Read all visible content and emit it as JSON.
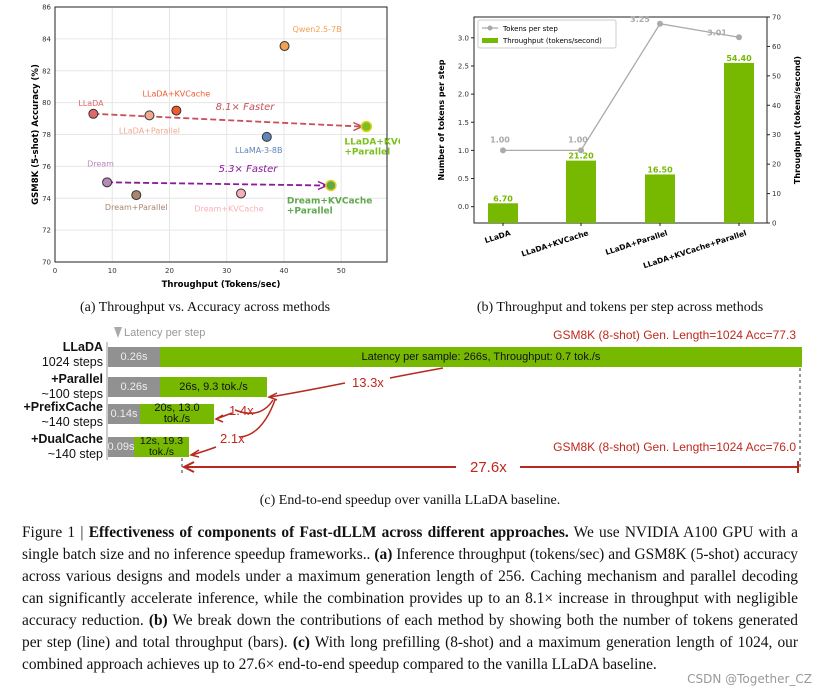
{
  "chart_data": [
    {
      "type": "scatter",
      "xlabel": "Throughput (Tokens/sec)",
      "ylabel": "GSM8K (5-shot) Accuracy (%)",
      "xlim": [
        0,
        58
      ],
      "ylim": [
        70,
        86
      ],
      "xticks": [
        0,
        10,
        20,
        30,
        40,
        50
      ],
      "yticks": [
        70,
        72,
        74,
        76,
        78,
        80,
        82,
        84,
        86
      ],
      "grid": true,
      "points": [
        {
          "label": "LLaDA",
          "x": 6.7,
          "y": 79.3,
          "color": "#e06868"
        },
        {
          "label": "LLaDA+Parallel",
          "x": 16.5,
          "y": 79.2,
          "color": "#f0a890"
        },
        {
          "label": "LLaDA+KVCache",
          "x": 21.2,
          "y": 79.5,
          "color": "#f25a30"
        },
        {
          "label": "Qwen2.5-7B",
          "x": 40.1,
          "y": 83.55,
          "color": "#f4a050"
        },
        {
          "label": "LLaMA-3-8B",
          "x": 37.0,
          "y": 77.85,
          "color": "#5f86b8"
        },
        {
          "label": "LLaDA+KVCache +Parallel",
          "x": 54.4,
          "y": 78.5,
          "color": "#7cc020"
        },
        {
          "label": "Dream",
          "x": 9.1,
          "y": 75.0,
          "color": "#b888b8"
        },
        {
          "label": "Dream+Parallel",
          "x": 14.2,
          "y": 74.2,
          "color": "#a88670"
        },
        {
          "label": "Dream+KVCache",
          "x": 32.5,
          "y": 74.3,
          "color": "#f8b0b8"
        },
        {
          "label": "Dream+KVCache +Parallel",
          "x": 48.2,
          "y": 74.8,
          "color": "#5fa84e"
        }
      ],
      "annotations": [
        "8.1× Faster",
        "5.3× Faster"
      ]
    },
    {
      "type": "bar",
      "categories": [
        "LLaDA",
        "LLaDA+KVCache",
        "LLaDA+Parallel",
        "LLaDA+KVCache+Parallel"
      ],
      "ylabel": "Number of tokens per step",
      "y2label": "Throughput (tokens/second)",
      "ylim": [
        -0.29,
        3.37
      ],
      "y2lim": [
        0,
        70
      ],
      "yticks": [
        0.0,
        0.5,
        1.0,
        1.5,
        2.0,
        2.5,
        3.0
      ],
      "y2ticks": [
        0,
        10,
        20,
        30,
        40,
        50,
        60,
        70
      ],
      "legend": "top-left",
      "series": [
        {
          "name": "Tokens per step",
          "kind": "line",
          "values": [
            1.0,
            1.0,
            3.25,
            3.01
          ],
          "labels": [
            "1.00",
            "1.00",
            "3.25",
            "3.01"
          ],
          "color": "#aaaaaa"
        },
        {
          "name": "Throughput (tokens/second)",
          "kind": "bar",
          "axis": "right",
          "values": [
            6.7,
            21.2,
            16.5,
            54.4
          ],
          "labels": [
            "6.70",
            "21.20",
            "16.50",
            "54.40"
          ],
          "color": "#76b900"
        }
      ]
    }
  ],
  "captions": {
    "a": "(a) Throughput vs. Accuracy across methods",
    "b": "(b) Throughput and tokens per step across methods",
    "c": "(c) End-to-end speedup over vanilla LLaDA baseline."
  },
  "panel_c": {
    "latency_legend": "Latency per step",
    "acc_top": "GSM8K (8-shot) Gen. Length=1024 Acc=77.3",
    "acc_bottom": "GSM8K (8-shot) Gen. Length=1024 Acc=76.0",
    "rows": [
      {
        "name": "LLaDA",
        "steps": "1024 steps",
        "step_latency": "0.26s",
        "summary": "Latency per sample: 266s, Throughput: 0.7 tok./s"
      },
      {
        "name": "+Parallel",
        "steps": "~100 steps",
        "step_latency": "0.26s",
        "summary": "26s, 9.3 tok./s"
      },
      {
        "name": "+PrefixCache",
        "steps": "~140 steps",
        "step_latency": "0.14s",
        "summary": "20s, 13.0 tok./s"
      },
      {
        "name": "+DualCache",
        "steps": "~140 step",
        "step_latency": "0.09s",
        "summary": "12s, 19.3 tok./s"
      }
    ],
    "speedups": [
      "13.3x",
      "1.4x",
      "2.1x",
      "27.6x"
    ]
  },
  "figure_caption": {
    "label": "Figure 1 | ",
    "title": "Effectiveness of components of Fast-dLLM across different approaches.",
    "p1": " We use NVIDIA A100 GPU with a single batch size and no inference speedup frameworks.. ",
    "a": "(a)",
    "p2": " Inference throughput (tokens/sec) and GSM8K (5-shot) accuracy across various designs and models under a maximum generation length of 256. Caching mechanism and parallel decoding can significantly accelerate inference, while the combination provides up to an 8.1× increase in throughput with negligible accuracy reduction. ",
    "b": "(b)",
    "p3": " We break down the contributions of each method by showing both the number of tokens generated per step (line) and total throughput (bars). ",
    "c": "(c)",
    "p4": " With long prefilling (8-shot) and a maximum generation length of 1024, our combined approach achieves up to 27.6× end-to-end speedup compared to the vanilla LLaDA baseline."
  },
  "watermark": "CSDN @Together_CZ"
}
